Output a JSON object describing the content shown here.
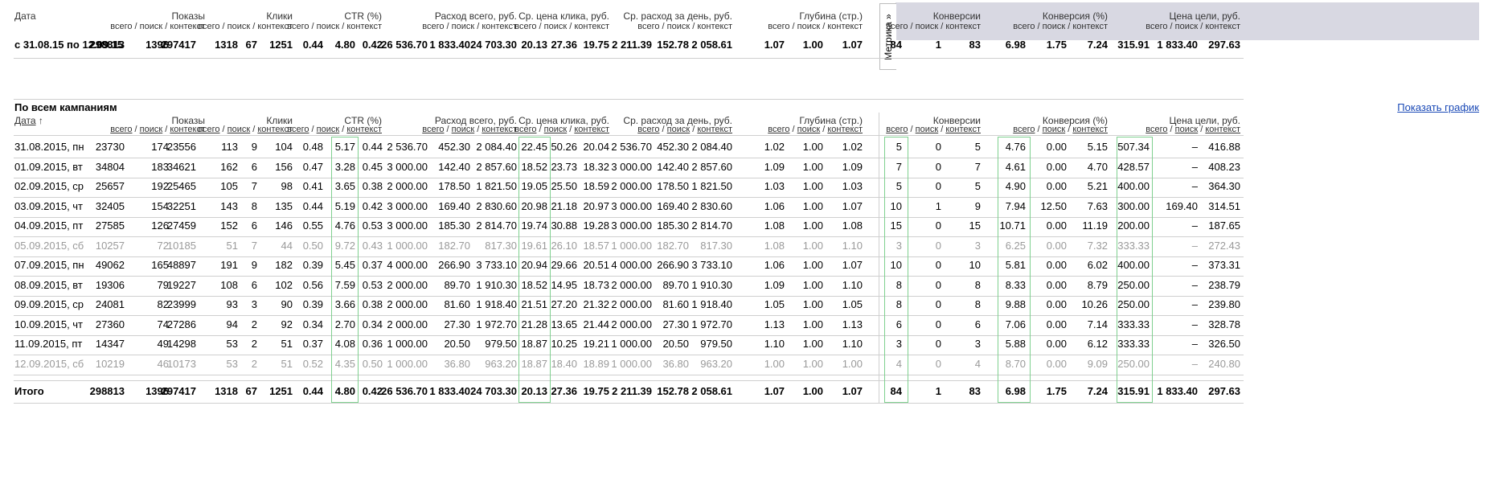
{
  "period": {
    "label": "с 31.08.15 по 12.09.15",
    "values": [
      "298813",
      "1396",
      "297417",
      "1318",
      "67",
      "1251",
      "0.44",
      "4.80",
      "0.42",
      "26 536.70",
      "1 833.40",
      "24 703.30",
      "20.13",
      "27.36",
      "19.75",
      "2 211.39",
      "152.78",
      "2 058.61",
      "1.07",
      "1.00",
      "1.07",
      "84",
      "1",
      "83",
      "6.98",
      "1.75",
      "7.24",
      "315.91",
      "1 833.40",
      "297.63"
    ]
  },
  "metrika_tab": "Метрика »",
  "section_title": "По всем кампаниям",
  "show_chart_link": "Показать график",
  "top_headers": {
    "date": "Дата",
    "groups": [
      "Показы",
      "Клики",
      "CTR (%)",
      "Расход всего, руб.",
      "Ср. цена клика, руб.",
      "Ср. расход за день, руб.",
      "Глубина (стр.)",
      "Конверсии",
      "Конверсия (%)",
      "Цена цели, руб."
    ],
    "sub": "всего / поиск / контекст"
  },
  "table_headers": {
    "date": "Дата",
    "sort_arrow": "↑",
    "groups": [
      "Показы",
      "Клики",
      "CTR (%)",
      "Расход всего, руб.",
      "Ср. цена клика, руб.",
      "Ср. расход за день, руб.",
      "Глубина (стр.)",
      "Конверсии",
      "Конверсия (%)",
      "Цена цели, руб."
    ],
    "sub_all": "всего",
    "sub_search": "поиск",
    "sub_context": "контекст",
    "sub_sep": " / "
  },
  "rows": [
    {
      "date": "31.08.2015, пн",
      "v": [
        "23730",
        "174",
        "23556",
        "113",
        "9",
        "104",
        "0.48",
        "5.17",
        "0.44",
        "2 536.70",
        "452.30",
        "2 084.40",
        "22.45",
        "50.26",
        "20.04",
        "2 536.70",
        "452.30",
        "2 084.40",
        "1.02",
        "1.00",
        "1.02",
        "5",
        "0",
        "5",
        "4.76",
        "0.00",
        "5.15",
        "507.34",
        "–",
        "416.88"
      ]
    },
    {
      "date": "01.09.2015, вт",
      "v": [
        "34804",
        "183",
        "34621",
        "162",
        "6",
        "156",
        "0.47",
        "3.28",
        "0.45",
        "3 000.00",
        "142.40",
        "2 857.60",
        "18.52",
        "23.73",
        "18.32",
        "3 000.00",
        "142.40",
        "2 857.60",
        "1.09",
        "1.00",
        "1.09",
        "7",
        "0",
        "7",
        "4.61",
        "0.00",
        "4.70",
        "428.57",
        "–",
        "408.23"
      ]
    },
    {
      "date": "02.09.2015, ср",
      "v": [
        "25657",
        "192",
        "25465",
        "105",
        "7",
        "98",
        "0.41",
        "3.65",
        "0.38",
        "2 000.00",
        "178.50",
        "1 821.50",
        "19.05",
        "25.50",
        "18.59",
        "2 000.00",
        "178.50",
        "1 821.50",
        "1.03",
        "1.00",
        "1.03",
        "5",
        "0",
        "5",
        "4.90",
        "0.00",
        "5.21",
        "400.00",
        "–",
        "364.30"
      ]
    },
    {
      "date": "03.09.2015, чт",
      "v": [
        "32405",
        "154",
        "32251",
        "143",
        "8",
        "135",
        "0.44",
        "5.19",
        "0.42",
        "3 000.00",
        "169.40",
        "2 830.60",
        "20.98",
        "21.18",
        "20.97",
        "3 000.00",
        "169.40",
        "2 830.60",
        "1.06",
        "1.00",
        "1.07",
        "10",
        "1",
        "9",
        "7.94",
        "12.50",
        "7.63",
        "300.00",
        "169.40",
        "314.51"
      ]
    },
    {
      "date": "04.09.2015, пт",
      "v": [
        "27585",
        "126",
        "27459",
        "152",
        "6",
        "146",
        "0.55",
        "4.76",
        "0.53",
        "3 000.00",
        "185.30",
        "2 814.70",
        "19.74",
        "30.88",
        "19.28",
        "3 000.00",
        "185.30",
        "2 814.70",
        "1.08",
        "1.00",
        "1.08",
        "15",
        "0",
        "15",
        "10.71",
        "0.00",
        "11.19",
        "200.00",
        "–",
        "187.65"
      ]
    },
    {
      "date": "05.09.2015, сб",
      "weekend": true,
      "v": [
        "10257",
        "72",
        "10185",
        "51",
        "7",
        "44",
        "0.50",
        "9.72",
        "0.43",
        "1 000.00",
        "182.70",
        "817.30",
        "19.61",
        "26.10",
        "18.57",
        "1 000.00",
        "182.70",
        "817.30",
        "1.08",
        "1.00",
        "1.10",
        "3",
        "0",
        "3",
        "6.25",
        "0.00",
        "7.32",
        "333.33",
        "–",
        "272.43"
      ]
    },
    {
      "date": "07.09.2015, пн",
      "v": [
        "49062",
        "165",
        "48897",
        "191",
        "9",
        "182",
        "0.39",
        "5.45",
        "0.37",
        "4 000.00",
        "266.90",
        "3 733.10",
        "20.94",
        "29.66",
        "20.51",
        "4 000.00",
        "266.90",
        "3 733.10",
        "1.06",
        "1.00",
        "1.07",
        "10",
        "0",
        "10",
        "5.81",
        "0.00",
        "6.02",
        "400.00",
        "–",
        "373.31"
      ]
    },
    {
      "date": "08.09.2015, вт",
      "v": [
        "19306",
        "79",
        "19227",
        "108",
        "6",
        "102",
        "0.56",
        "7.59",
        "0.53",
        "2 000.00",
        "89.70",
        "1 910.30",
        "18.52",
        "14.95",
        "18.73",
        "2 000.00",
        "89.70",
        "1 910.30",
        "1.09",
        "1.00",
        "1.10",
        "8",
        "0",
        "8",
        "8.33",
        "0.00",
        "8.79",
        "250.00",
        "–",
        "238.79"
      ]
    },
    {
      "date": "09.09.2015, ср",
      "v": [
        "24081",
        "82",
        "23999",
        "93",
        "3",
        "90",
        "0.39",
        "3.66",
        "0.38",
        "2 000.00",
        "81.60",
        "1 918.40",
        "21.51",
        "27.20",
        "21.32",
        "2 000.00",
        "81.60",
        "1 918.40",
        "1.05",
        "1.00",
        "1.05",
        "8",
        "0",
        "8",
        "9.88",
        "0.00",
        "10.26",
        "250.00",
        "–",
        "239.80"
      ]
    },
    {
      "date": "10.09.2015, чт",
      "v": [
        "27360",
        "74",
        "27286",
        "94",
        "2",
        "92",
        "0.34",
        "2.70",
        "0.34",
        "2 000.00",
        "27.30",
        "1 972.70",
        "21.28",
        "13.65",
        "21.44",
        "2 000.00",
        "27.30",
        "1 972.70",
        "1.13",
        "1.00",
        "1.13",
        "6",
        "0",
        "6",
        "7.06",
        "0.00",
        "7.14",
        "333.33",
        "–",
        "328.78"
      ]
    },
    {
      "date": "11.09.2015, пт",
      "v": [
        "14347",
        "49",
        "14298",
        "53",
        "2",
        "51",
        "0.37",
        "4.08",
        "0.36",
        "1 000.00",
        "20.50",
        "979.50",
        "18.87",
        "10.25",
        "19.21",
        "1 000.00",
        "20.50",
        "979.50",
        "1.10",
        "1.00",
        "1.10",
        "3",
        "0",
        "3",
        "5.88",
        "0.00",
        "6.12",
        "333.33",
        "–",
        "326.50"
      ]
    },
    {
      "date": "12.09.2015, сб",
      "weekend": true,
      "v": [
        "10219",
        "46",
        "10173",
        "53",
        "2",
        "51",
        "0.52",
        "4.35",
        "0.50",
        "1 000.00",
        "36.80",
        "963.20",
        "18.87",
        "18.40",
        "18.89",
        "1 000.00",
        "36.80",
        "963.20",
        "1.00",
        "1.00",
        "1.00",
        "4",
        "0",
        "4",
        "8.70",
        "0.00",
        "9.09",
        "250.00",
        "–",
        "240.80"
      ]
    }
  ],
  "total": {
    "label": "Итого",
    "values": [
      "298813",
      "1396",
      "297417",
      "1318",
      "67",
      "1251",
      "0.44",
      "4.80",
      "0.42",
      "26 536.70",
      "1 833.40",
      "24 703.30",
      "20.13",
      "27.36",
      "19.75",
      "2 211.39",
      "152.78",
      "2 058.61",
      "1.07",
      "1.00",
      "1.07",
      "84",
      "1",
      "83",
      "6.98",
      "1.75",
      "7.24",
      "315.91",
      "1 833.40",
      "297.63"
    ]
  },
  "colors": {
    "highlight": "#7fd08f",
    "metrika_band": "#d8d8e2",
    "link": "#1a49b6",
    "weekend_text": "#9a9a9a"
  }
}
